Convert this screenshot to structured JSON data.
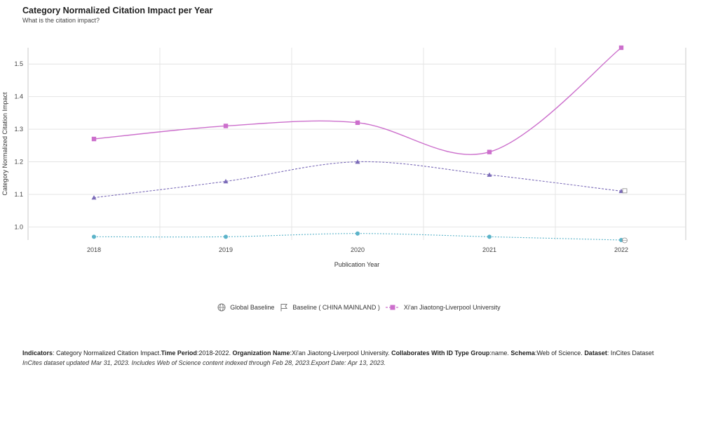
{
  "header": {
    "title": "Category Normalized Citation Impact per Year",
    "subtitle": "What is the citation impact?"
  },
  "legend": [
    {
      "label": "Global Baseline",
      "icon": "globe-icon"
    },
    {
      "label": "Baseline ( CHINA MAINLAND )",
      "icon": "flag-icon"
    },
    {
      "label": "Xi'an Jiaotong-Liverpool University",
      "icon": "square-marker-icon"
    }
  ],
  "chart_data": {
    "type": "line",
    "xlabel": "Publication Year",
    "ylabel": "Category Normalized Citation Impact",
    "x": [
      "2018",
      "2019",
      "2020",
      "2021",
      "2022"
    ],
    "ylim": [
      0.96,
      1.55
    ],
    "yticks": [
      "1.0",
      "1.1",
      "1.2",
      "1.3",
      "1.4",
      "1.5"
    ],
    "grid": true,
    "legend_position": "bottom",
    "series": [
      {
        "name": "Global Baseline",
        "values": [
          0.97,
          0.97,
          0.98,
          0.97,
          0.96
        ],
        "color": "#5bb3c9",
        "marker": "circle",
        "dash": "dotted"
      },
      {
        "name": "Baseline ( CHINA MAINLAND )",
        "values": [
          1.09,
          1.14,
          1.2,
          1.16,
          1.11
        ],
        "color": "#7b6bb8",
        "marker": "triangle",
        "dash": "dashed"
      },
      {
        "name": "Xi'an Jiaotong-Liverpool University",
        "values": [
          1.27,
          1.31,
          1.32,
          1.23,
          1.55
        ],
        "color": "#cc6fcc",
        "marker": "square",
        "dash": "solid"
      }
    ]
  },
  "footer": {
    "indicators_label": "Indicators",
    "indicators_value": ": Category Normalized Citation Impact.",
    "period_label": "Time Period",
    "period_value": ":2018-2022. ",
    "org_label": "Organization Name",
    "org_value": ":Xi'an Jiaotong-Liverpool University. ",
    "collab_label": "Collaborates With ID Type Group",
    "collab_value": ":name. ",
    "schema_label": "Schema",
    "schema_value": ":Web of Science. ",
    "dataset_label": "Dataset",
    "dataset_value": ": InCites Dataset",
    "note": "InCites dataset updated Mar 31, 2023. Includes Web of Science content indexed through Feb 28, 2023.Export Date: Apr 13, 2023."
  }
}
